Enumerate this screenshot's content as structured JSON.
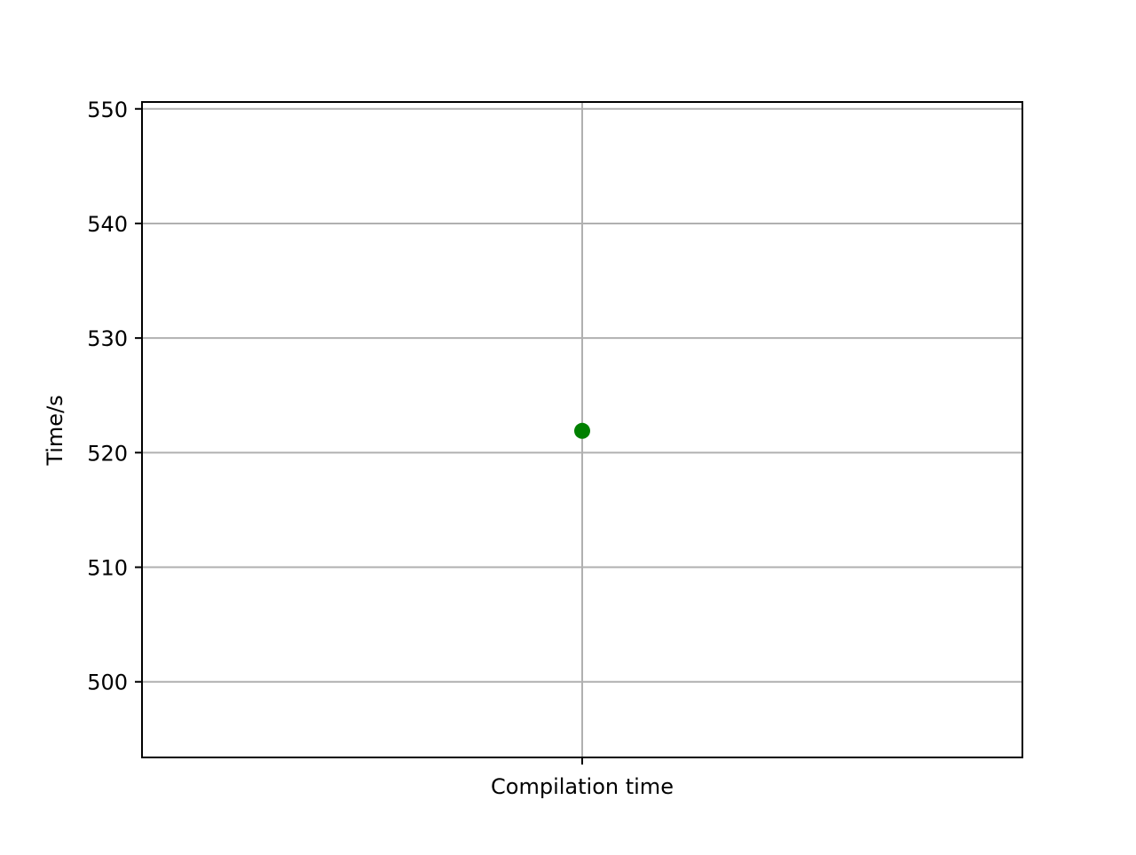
{
  "chart_data": {
    "type": "scatter",
    "title": "",
    "xlabel": "",
    "ylabel": "Time/s",
    "categories": [
      "Compilation time"
    ],
    "series": [
      {
        "values": [
          521.9
        ],
        "color": "#008000"
      }
    ],
    "ylim": [
      493.4,
      550.6
    ],
    "yticks": [
      500,
      510,
      520,
      530,
      540,
      550
    ],
    "grid": true,
    "legend": "none"
  }
}
